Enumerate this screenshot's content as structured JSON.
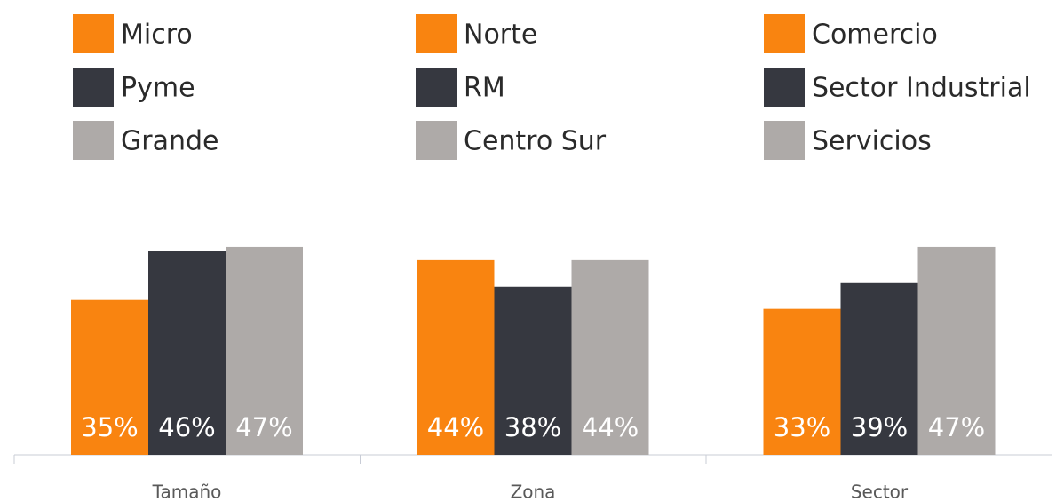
{
  "chart_data": [
    {
      "type": "bar",
      "categories": [
        "Tamaño"
      ],
      "ylim": [
        0,
        100
      ],
      "series": [
        {
          "name": "Micro",
          "color": "#f98410",
          "values": [
            35
          ],
          "value_labels": [
            "35%"
          ]
        },
        {
          "name": "Pyme",
          "color": "#363840",
          "values": [
            46
          ],
          "value_labels": [
            "46%"
          ]
        },
        {
          "name": "Grande",
          "color": "#aeaaa8",
          "values": [
            47
          ],
          "value_labels": [
            "47%"
          ]
        }
      ]
    },
    {
      "type": "bar",
      "categories": [
        "Zona"
      ],
      "ylim": [
        0,
        100
      ],
      "series": [
        {
          "name": "Norte",
          "color": "#f98410",
          "values": [
            44
          ],
          "value_labels": [
            "44%"
          ]
        },
        {
          "name": "RM",
          "color": "#363840",
          "values": [
            38
          ],
          "value_labels": [
            "38%"
          ]
        },
        {
          "name": "Centro Sur",
          "color": "#aeaaa8",
          "values": [
            44
          ],
          "value_labels": [
            "44%"
          ]
        }
      ]
    },
    {
      "type": "bar",
      "categories": [
        "Sector"
      ],
      "ylim": [
        0,
        100
      ],
      "series": [
        {
          "name": "Comercio",
          "color": "#f98410",
          "values": [
            33
          ],
          "value_labels": [
            "33%"
          ]
        },
        {
          "name": "Sector Industrial",
          "color": "#363840",
          "values": [
            39
          ],
          "value_labels": [
            "39%"
          ]
        },
        {
          "name": "Servicios",
          "color": "#aeaaa8",
          "values": [
            47
          ],
          "value_labels": [
            "47%"
          ]
        }
      ]
    }
  ]
}
